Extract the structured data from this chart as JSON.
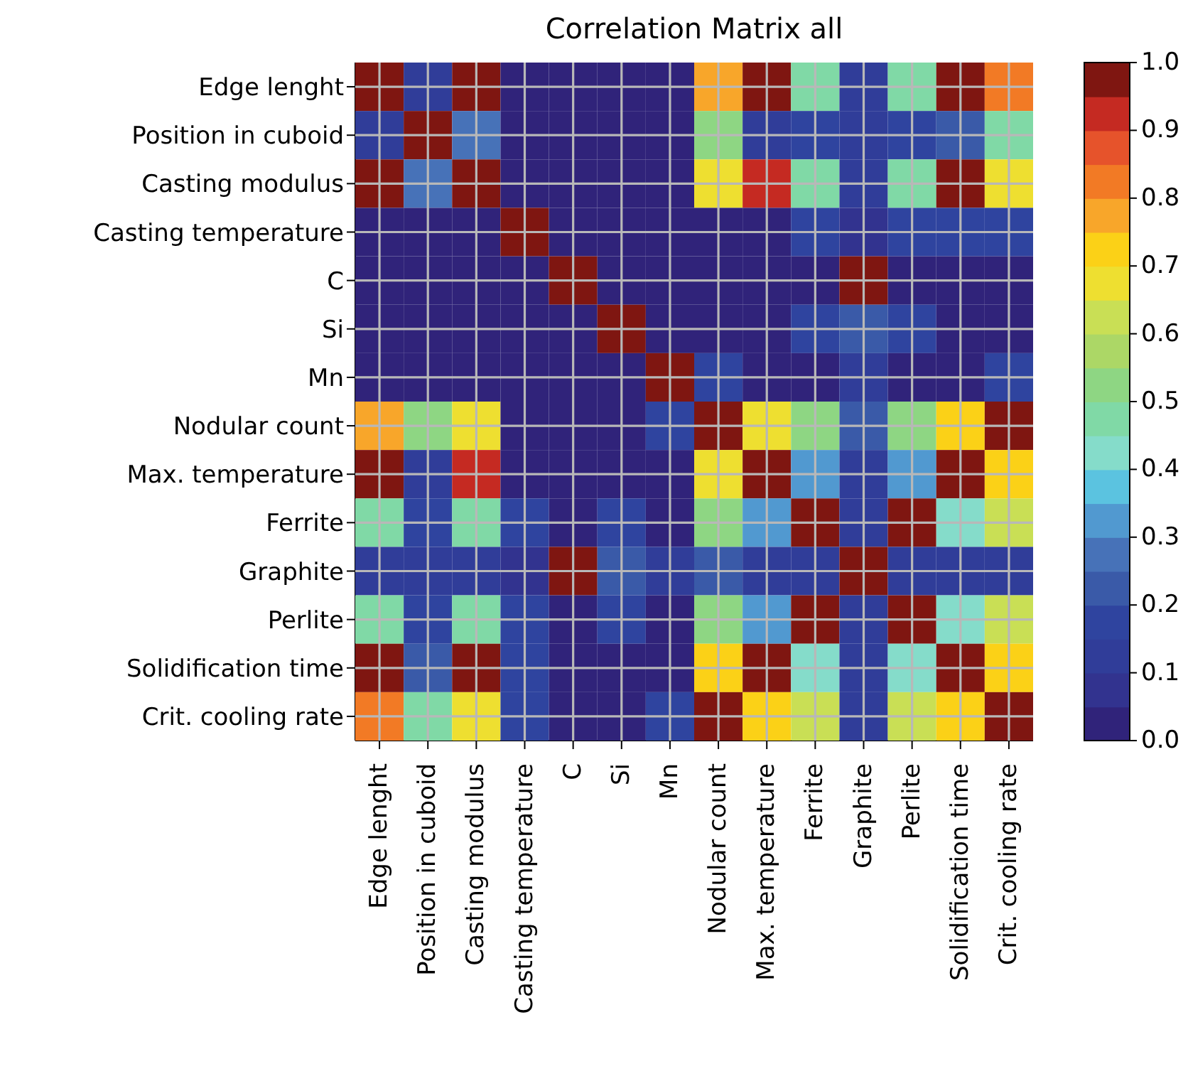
{
  "chart_data": {
    "type": "heatmap",
    "title": "Correlation Matrix all",
    "categories": [
      "Edge lenght",
      "Position in cuboid",
      "Casting modulus",
      "Casting temperature",
      "C",
      "Si",
      "Mn",
      "Nodular count",
      "Max. temperature",
      "Ferrite",
      "Graphite",
      "Perlite",
      "Solidification time",
      "Crit. cooling rate"
    ],
    "y_categories": [
      "Edge lenght",
      "Position in cuboid",
      "Casting modulus",
      "Casting temperature",
      "C",
      "Si",
      "Mn",
      "Nodular count",
      "Max. temperature",
      "Ferrite",
      "Graphite",
      "Perlite",
      "Solidification time",
      "Crit. cooling rate"
    ],
    "cells": [
      [
        1,
        0.1,
        0.97,
        0.03,
        0.03,
        0.03,
        0.03,
        0.77,
        0.97,
        0.47,
        0.1,
        0.47,
        0.97,
        0.82
      ],
      [
        0.1,
        1,
        0.25,
        0.03,
        0.03,
        0.03,
        0.03,
        0.52,
        0.1,
        0.15,
        0.1,
        0.15,
        0.2,
        0.47
      ],
      [
        0.97,
        0.25,
        1,
        0.03,
        0.03,
        0.03,
        0.03,
        0.67,
        0.93,
        0.47,
        0.1,
        0.47,
        0.97,
        0.67
      ],
      [
        0.03,
        0.03,
        0.03,
        1,
        0.03,
        0.03,
        0.03,
        0.03,
        0.03,
        0.15,
        0.07,
        0.15,
        0.15,
        0.15
      ],
      [
        0.03,
        0.03,
        0.03,
        0.03,
        1,
        0.03,
        0.03,
        0.03,
        0.03,
        0.03,
        0.97,
        0.03,
        0.03,
        0.03
      ],
      [
        0.03,
        0.03,
        0.03,
        0.03,
        0.03,
        1,
        0.03,
        0.03,
        0.03,
        0.15,
        0.22,
        0.15,
        0.03,
        0.03
      ],
      [
        0.03,
        0.03,
        0.03,
        0.03,
        0.03,
        0.03,
        1,
        0.15,
        0.03,
        0.03,
        0.12,
        0.03,
        0.03,
        0.15
      ],
      [
        0.77,
        0.52,
        0.67,
        0.03,
        0.03,
        0.03,
        0.15,
        1,
        0.67,
        0.52,
        0.2,
        0.52,
        0.72,
        0.97
      ],
      [
        0.97,
        0.1,
        0.93,
        0.03,
        0.03,
        0.03,
        0.03,
        0.67,
        1,
        0.32,
        0.1,
        0.32,
        0.97,
        0.72
      ],
      [
        0.47,
        0.15,
        0.47,
        0.15,
        0.03,
        0.15,
        0.03,
        0.52,
        0.32,
        1,
        0.1,
        0.97,
        0.42,
        0.62
      ],
      [
        0.1,
        0.1,
        0.1,
        0.07,
        0.97,
        0.22,
        0.12,
        0.2,
        0.1,
        0.1,
        1,
        0.1,
        0.1,
        0.1
      ],
      [
        0.47,
        0.15,
        0.47,
        0.15,
        0.03,
        0.15,
        0.03,
        0.52,
        0.32,
        0.97,
        0.1,
        1,
        0.42,
        0.62
      ],
      [
        0.97,
        0.2,
        0.97,
        0.15,
        0.03,
        0.03,
        0.03,
        0.72,
        0.97,
        0.42,
        0.1,
        0.42,
        1,
        0.72
      ],
      [
        0.82,
        0.47,
        0.67,
        0.15,
        0.03,
        0.03,
        0.15,
        0.97,
        0.72,
        0.62,
        0.1,
        0.62,
        0.72,
        1
      ]
    ],
    "clim": [
      0,
      1
    ],
    "cticks": [
      {
        "value": 0,
        "label": "0.0"
      },
      {
        "value": 0.1,
        "label": "0.1"
      },
      {
        "value": 0.2,
        "label": "0.2"
      },
      {
        "value": 0.3,
        "label": "0.3"
      },
      {
        "value": 0.4,
        "label": "0.4"
      },
      {
        "value": 0.5,
        "label": "0.5"
      },
      {
        "value": 0.6,
        "label": "0.6"
      },
      {
        "value": 0.7,
        "label": "0.7"
      },
      {
        "value": 0.8,
        "label": "0.8"
      },
      {
        "value": 0.9,
        "label": "0.9"
      },
      {
        "value": 1,
        "label": "1.0"
      }
    ],
    "grid": true
  }
}
